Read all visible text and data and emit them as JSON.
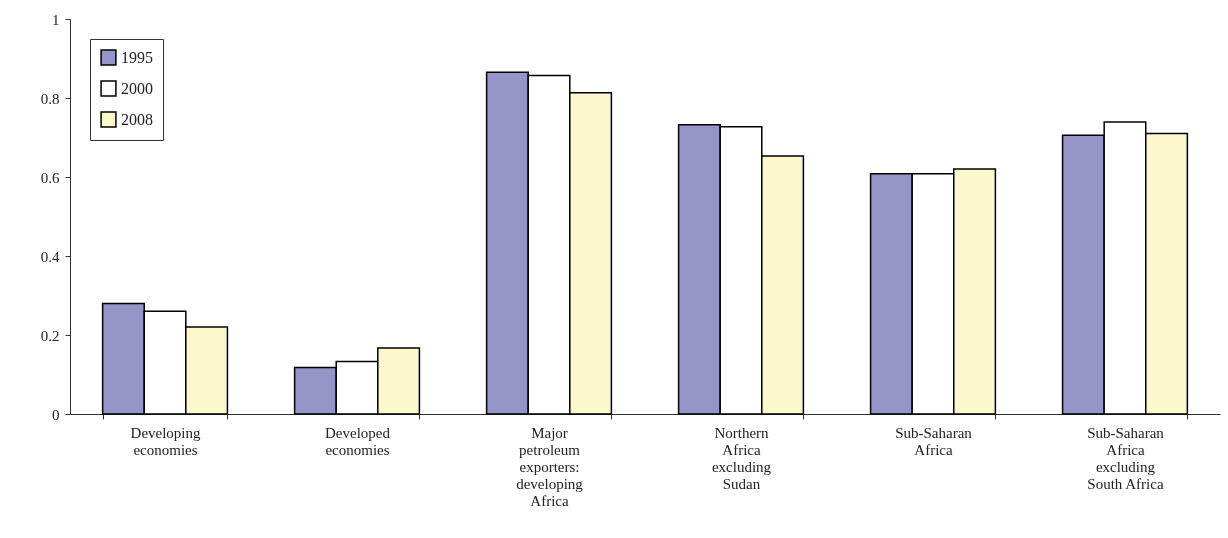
{
  "chart_data": {
    "type": "bar",
    "categories": [
      "Developing economies",
      "Developed economies",
      "Major petroleum exporters: developing Africa",
      "Northern Africa excluding Sudan",
      "Sub-Saharan Africa",
      "Sub-Saharan Africa excluding South Africa"
    ],
    "series": [
      {
        "name": "1995",
        "color": "#9595c8",
        "values": [
          0.28,
          0.118,
          0.865,
          0.732,
          0.608,
          0.706
        ]
      },
      {
        "name": "2000",
        "color": "#ffffff",
        "values": [
          0.26,
          0.133,
          0.857,
          0.727,
          0.608,
          0.739
        ]
      },
      {
        "name": "2008",
        "color": "#fbf8cc",
        "values": [
          0.22,
          0.167,
          0.813,
          0.653,
          0.62,
          0.71
        ]
      }
    ],
    "ylim": [
      0,
      1
    ],
    "yticks": [
      0,
      0.2,
      0.4,
      0.6,
      0.8,
      1
    ],
    "grid": false,
    "legend": "top left"
  }
}
